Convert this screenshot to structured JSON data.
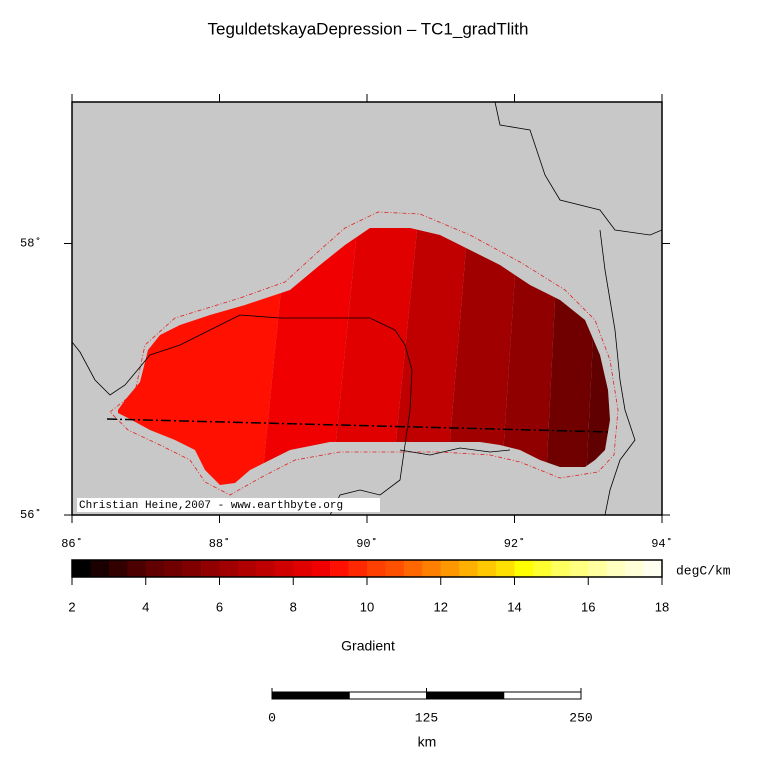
{
  "title": "TeguldetskayaDepression – TC1_gradTlith",
  "map": {
    "projection": "mercator",
    "xlim": [
      86,
      94
    ],
    "ylim": [
      56,
      59
    ],
    "xticks": [
      {
        "value": 86,
        "label": "86˚"
      },
      {
        "value": 88,
        "label": "88˚"
      },
      {
        "value": 90,
        "label": "90˚"
      },
      {
        "value": 92,
        "label": "92˚"
      },
      {
        "value": 94,
        "label": "94˚"
      }
    ],
    "yticks": [
      {
        "value": 56,
        "label": "56˚"
      },
      {
        "value": 58,
        "label": "58˚"
      }
    ],
    "background": "#c8c8c8",
    "credit": "Christian Heine,2007 - www.earthbyte.org"
  },
  "colorbar": {
    "label": "Gradient",
    "unit": "degC/km",
    "range": [
      2,
      18
    ],
    "ticks": [
      2,
      4,
      6,
      8,
      10,
      12,
      14,
      16,
      18
    ],
    "colors": [
      "#000000",
      "#1a0000",
      "#330000",
      "#4d0000",
      "#600000",
      "#700000",
      "#800000",
      "#900000",
      "#a00000",
      "#b00000",
      "#c00000",
      "#d00000",
      "#e00000",
      "#f00000",
      "#ff1000",
      "#ff2800",
      "#ff4000",
      "#ff5000",
      "#ff6800",
      "#ff8000",
      "#ff9800",
      "#ffb000",
      "#ffc800",
      "#ffe000",
      "#ffff00",
      "#ffff30",
      "#ffff60",
      "#ffff80",
      "#ffffa0",
      "#ffffc0",
      "#ffffd8",
      "#fffff0"
    ]
  },
  "scale_bar": {
    "unit": "km",
    "range": [
      0,
      250
    ],
    "ticks": [
      0,
      125,
      250
    ]
  }
}
